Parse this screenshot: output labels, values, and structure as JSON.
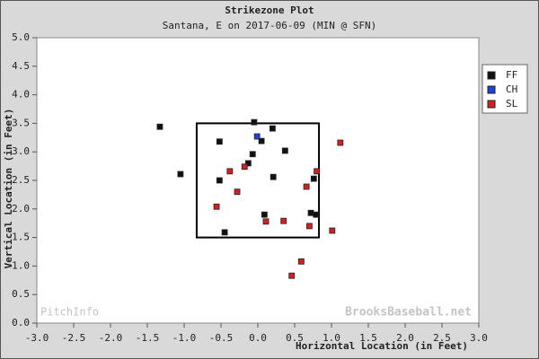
{
  "chart_data": {
    "type": "scatter",
    "title": "Strikezone Plot",
    "subtitle": "Santana, E on 2017-06-09 (MIN @ SFN)",
    "xlabel": "Horizontal Location (in Feet)",
    "ylabel": "Vertical Location (in Feet)",
    "xlim": [
      -3,
      3
    ],
    "ylim": [
      0,
      5
    ],
    "xticks": [
      {
        "value": -3,
        "label": "-3.0"
      },
      {
        "value": -2.5,
        "label": "-2.5"
      },
      {
        "value": -2,
        "label": "-2.0"
      },
      {
        "value": -1.5,
        "label": "-1.5"
      },
      {
        "value": -1,
        "label": "-1.0"
      },
      {
        "value": -0.5,
        "label": "-0.5"
      },
      {
        "value": 0,
        "label": "0.0"
      },
      {
        "value": 0.5,
        "label": "0.5"
      },
      {
        "value": 1,
        "label": "1.0"
      },
      {
        "value": 1.5,
        "label": "1.5"
      },
      {
        "value": 2,
        "label": "2.0"
      },
      {
        "value": 2.5,
        "label": "2.5"
      },
      {
        "value": 3,
        "label": "3.0"
      }
    ],
    "yticks": [
      {
        "value": 0,
        "label": "0.0"
      },
      {
        "value": 0.5,
        "label": "0.5"
      },
      {
        "value": 1,
        "label": "1.0"
      },
      {
        "value": 1.5,
        "label": "1.5"
      },
      {
        "value": 2,
        "label": "2.0"
      },
      {
        "value": 2.5,
        "label": "2.5"
      },
      {
        "value": 3,
        "label": "3.0"
      },
      {
        "value": 3.5,
        "label": "3.5"
      },
      {
        "value": 4,
        "label": "4.0"
      },
      {
        "value": 4.5,
        "label": "4.5"
      },
      {
        "value": 5,
        "label": "5.0"
      }
    ],
    "zone": {
      "x": [
        -0.83,
        0.83
      ],
      "y": [
        1.5,
        3.5
      ]
    },
    "legend": "right",
    "watermarks": [
      "PitchInfo",
      "BrooksBaseball.net"
    ],
    "series": [
      {
        "name": "FF",
        "color": "#111111",
        "x": [
          -1.33,
          -1.05,
          -0.52,
          -0.52,
          -0.45,
          -0.13,
          -0.07,
          -0.05,
          0.05,
          0.2,
          0.21,
          0.37,
          0.09,
          0.76,
          0.72,
          0.79
        ],
        "y": [
          3.44,
          2.61,
          3.18,
          2.5,
          1.59,
          2.8,
          2.96,
          3.52,
          3.19,
          3.41,
          2.56,
          3.02,
          1.9,
          2.53,
          1.93,
          1.9
        ]
      },
      {
        "name": "CH",
        "color": "#1f3fe0",
        "x": [
          -0.01
        ],
        "y": [
          3.27
        ]
      },
      {
        "name": "SL",
        "color": "#d42020",
        "x": [
          1.12,
          -0.38,
          -0.18,
          -0.28,
          -0.56,
          0.11,
          0.35,
          0.66,
          0.8,
          0.7,
          1.01,
          0.59,
          0.46
        ],
        "y": [
          3.16,
          2.66,
          2.74,
          2.3,
          2.04,
          1.78,
          1.79,
          2.39,
          2.66,
          1.7,
          1.62,
          1.08,
          0.83
        ]
      }
    ]
  }
}
